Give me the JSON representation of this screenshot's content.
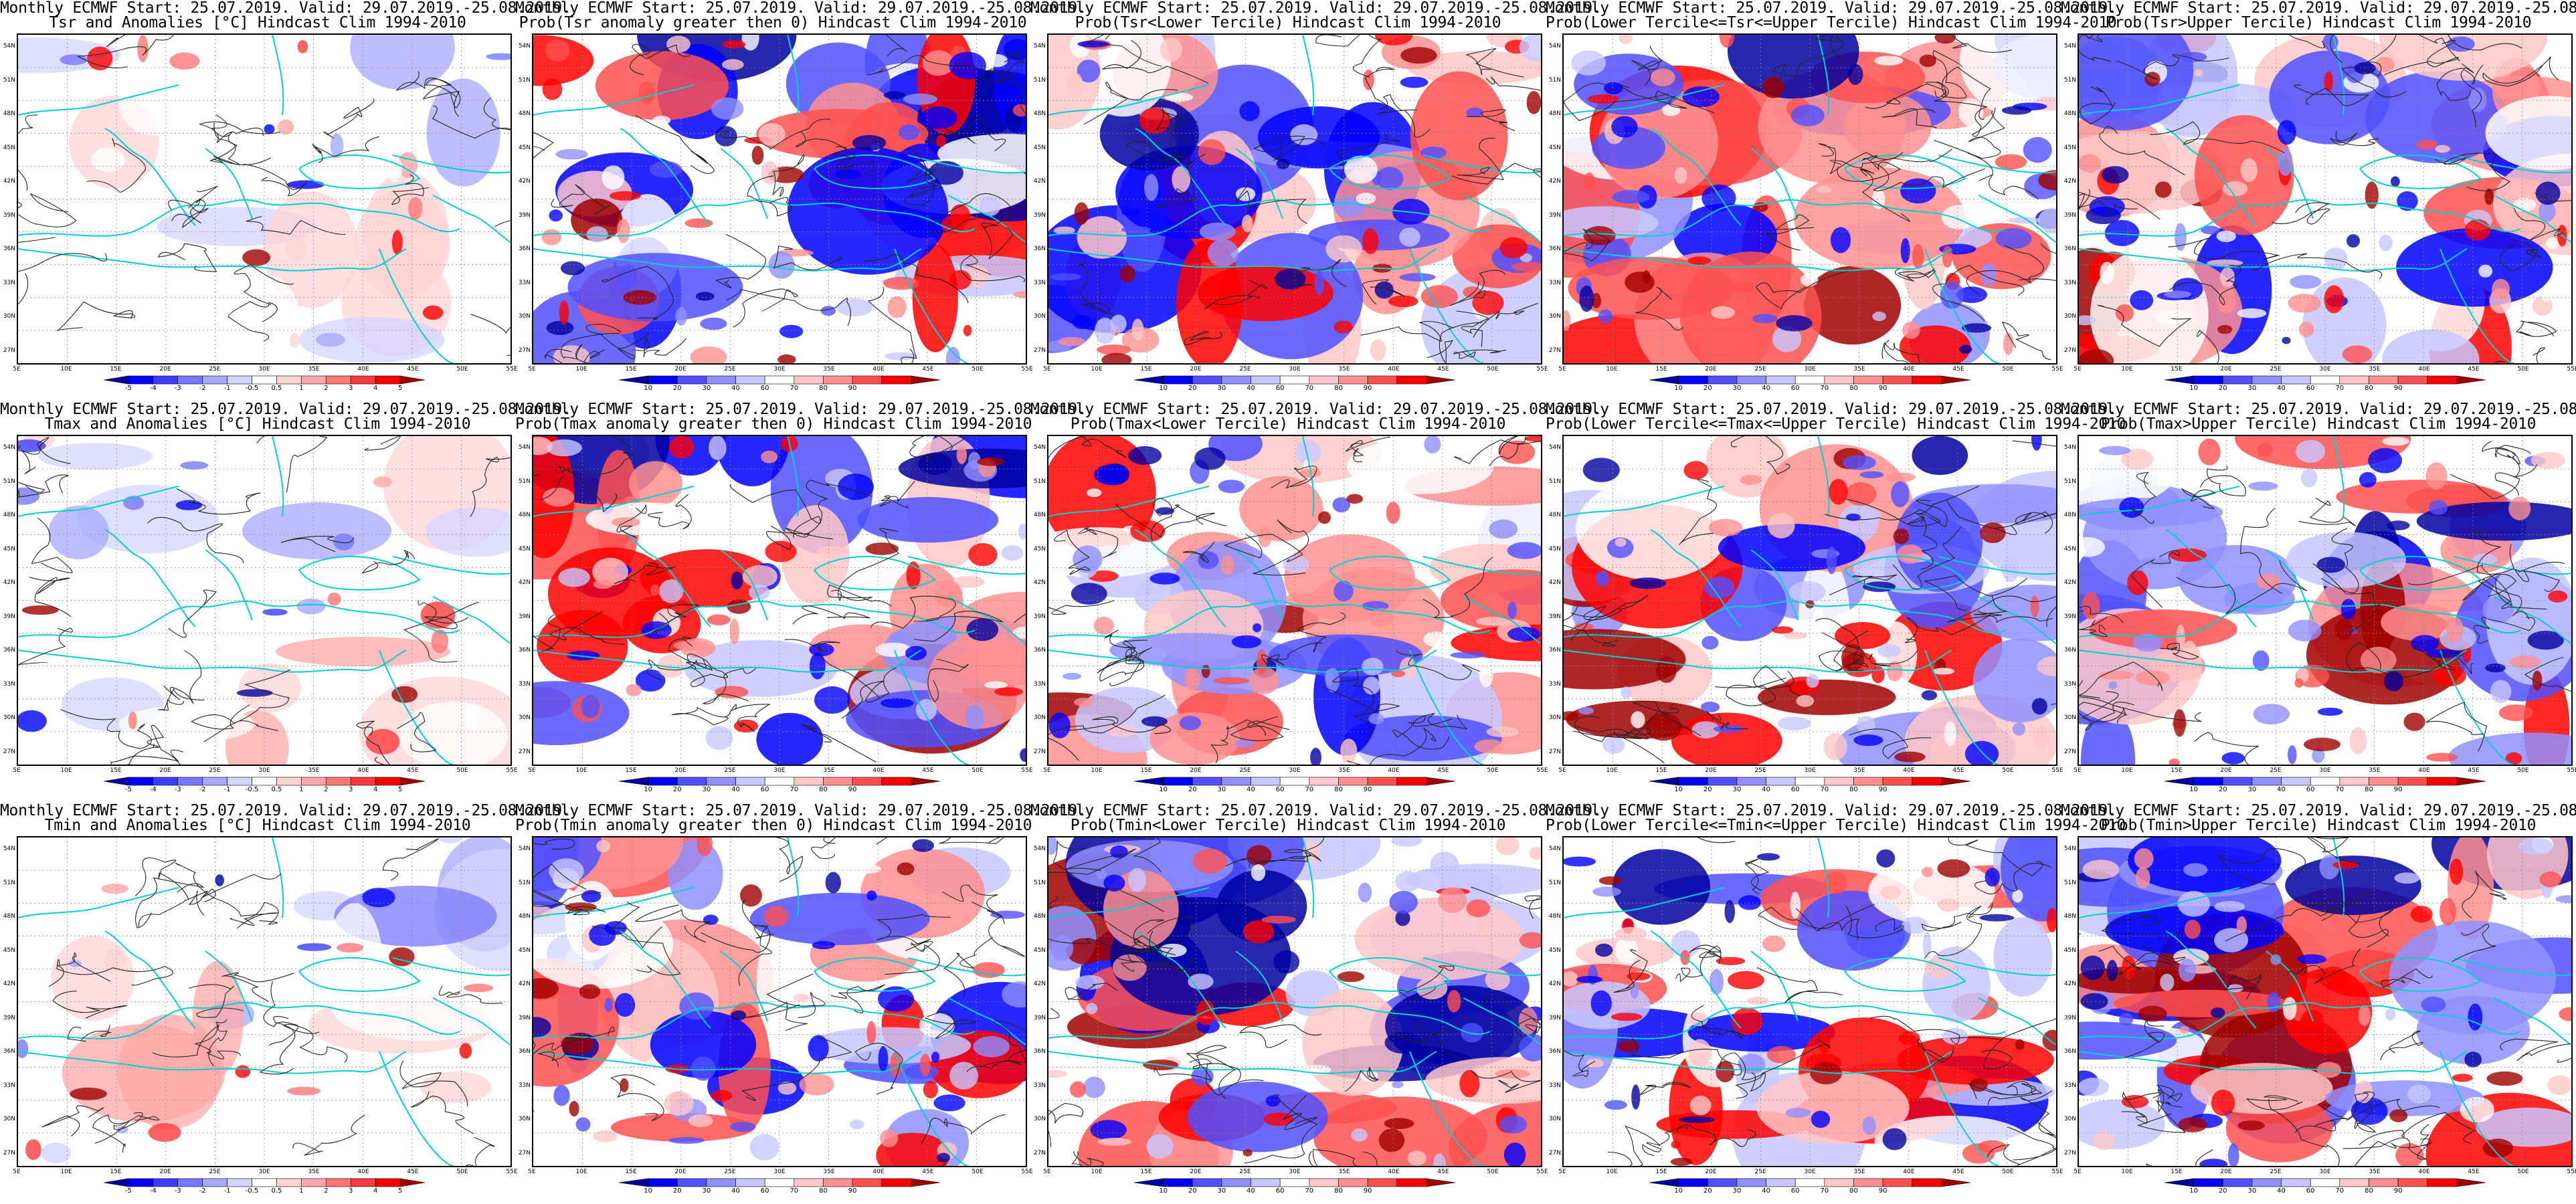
{
  "header_line1": "Monthly ECMWF Start: 25.07.2019. Valid: 29.07.2019.-25.08.2019.",
  "lat_labels": [
    "54N",
    "51N",
    "48N",
    "45N",
    "42N",
    "39N",
    "36N",
    "33N",
    "30N",
    "27N"
  ],
  "lon_labels": [
    "5E",
    "10E",
    "15E",
    "20E",
    "25E",
    "30E",
    "35E",
    "40E",
    "45E",
    "50E",
    "55E"
  ],
  "anomaly_colorbar": {
    "labels": [
      "-5",
      "-4",
      "-3",
      "-2",
      "-1",
      "-0.5",
      "0.5",
      "1",
      "2",
      "3",
      "4",
      "5"
    ],
    "colors": [
      "#0000a0",
      "#0000ff",
      "#3c3cff",
      "#7878ff",
      "#a8a8ff",
      "#d4d4ff",
      "#ffffff",
      "#ffd4d4",
      "#ffa8a8",
      "#ff7878",
      "#ff3c3c",
      "#ff0000",
      "#a00000"
    ]
  },
  "prob_colorbar": {
    "labels": [
      "10",
      "20",
      "30",
      "40",
      "60",
      "70",
      "80",
      "90"
    ],
    "colors": [
      "#0000a0",
      "#0000ff",
      "#5050ff",
      "#9090ff",
      "#c8c8ff",
      "#ffffff",
      "#ffc8c8",
      "#ff9090",
      "#ff5050",
      "#ff0000",
      "#a00000"
    ]
  },
  "rows": [
    {
      "panels": [
        {
          "title2": "Tsr and Anomalies [°C] Hindcast Clim 1994-2010",
          "kind": "anomaly",
          "seed": 11
        },
        {
          "title2": "Prob(Tsr anomaly greater then 0) Hindcast Clim 1994-2010",
          "kind": "prob",
          "seed": 12
        },
        {
          "title2": "Prob(Tsr<Lower Tercile) Hindcast Clim 1994-2010",
          "kind": "prob",
          "seed": 13
        },
        {
          "title2": "Prob(Lower Tercile<=Tsr<=Upper Tercile) Hindcast Clim 1994-2010",
          "kind": "prob",
          "seed": 14
        },
        {
          "title2": "Prob(Tsr>Upper Tercile) Hindcast Clim 1994-2010",
          "kind": "prob",
          "seed": 15
        }
      ]
    },
    {
      "panels": [
        {
          "title2": "Tmax and Anomalies [°C] Hindcast Clim 1994-2010",
          "kind": "anomaly",
          "seed": 21
        },
        {
          "title2": "Prob(Tmax anomaly greater then 0) Hindcast Clim 1994-2010",
          "kind": "prob",
          "seed": 22
        },
        {
          "title2": "Prob(Tmax<Lower Tercile) Hindcast Clim 1994-2010",
          "kind": "prob",
          "seed": 23
        },
        {
          "title2": "Prob(Lower Tercile<=Tmax<=Upper Tercile) Hindcast Clim 1994-2010",
          "kind": "prob",
          "seed": 24
        },
        {
          "title2": "Prob(Tmax>Upper Tercile) Hindcast Clim 1994-2010",
          "kind": "prob",
          "seed": 25
        }
      ]
    },
    {
      "panels": [
        {
          "title2": "Tmin and Anomalies [°C] Hindcast Clim 1994-2010",
          "kind": "anomaly",
          "seed": 31
        },
        {
          "title2": "Prob(Tmin anomaly greater then 0) Hindcast Clim 1994-2010",
          "kind": "prob",
          "seed": 32
        },
        {
          "title2": "Prob(Tmin<Lower Tercile) Hindcast Clim 1994-2010",
          "kind": "prob",
          "seed": 33
        },
        {
          "title2": "Prob(Lower Tercile<=Tmin<=Upper Tercile) Hindcast Clim 1994-2010",
          "kind": "prob",
          "seed": 34
        },
        {
          "title2": "Prob(Tmin>Upper Tercile) Hindcast Clim 1994-2010",
          "kind": "prob",
          "seed": 35
        }
      ]
    }
  ]
}
